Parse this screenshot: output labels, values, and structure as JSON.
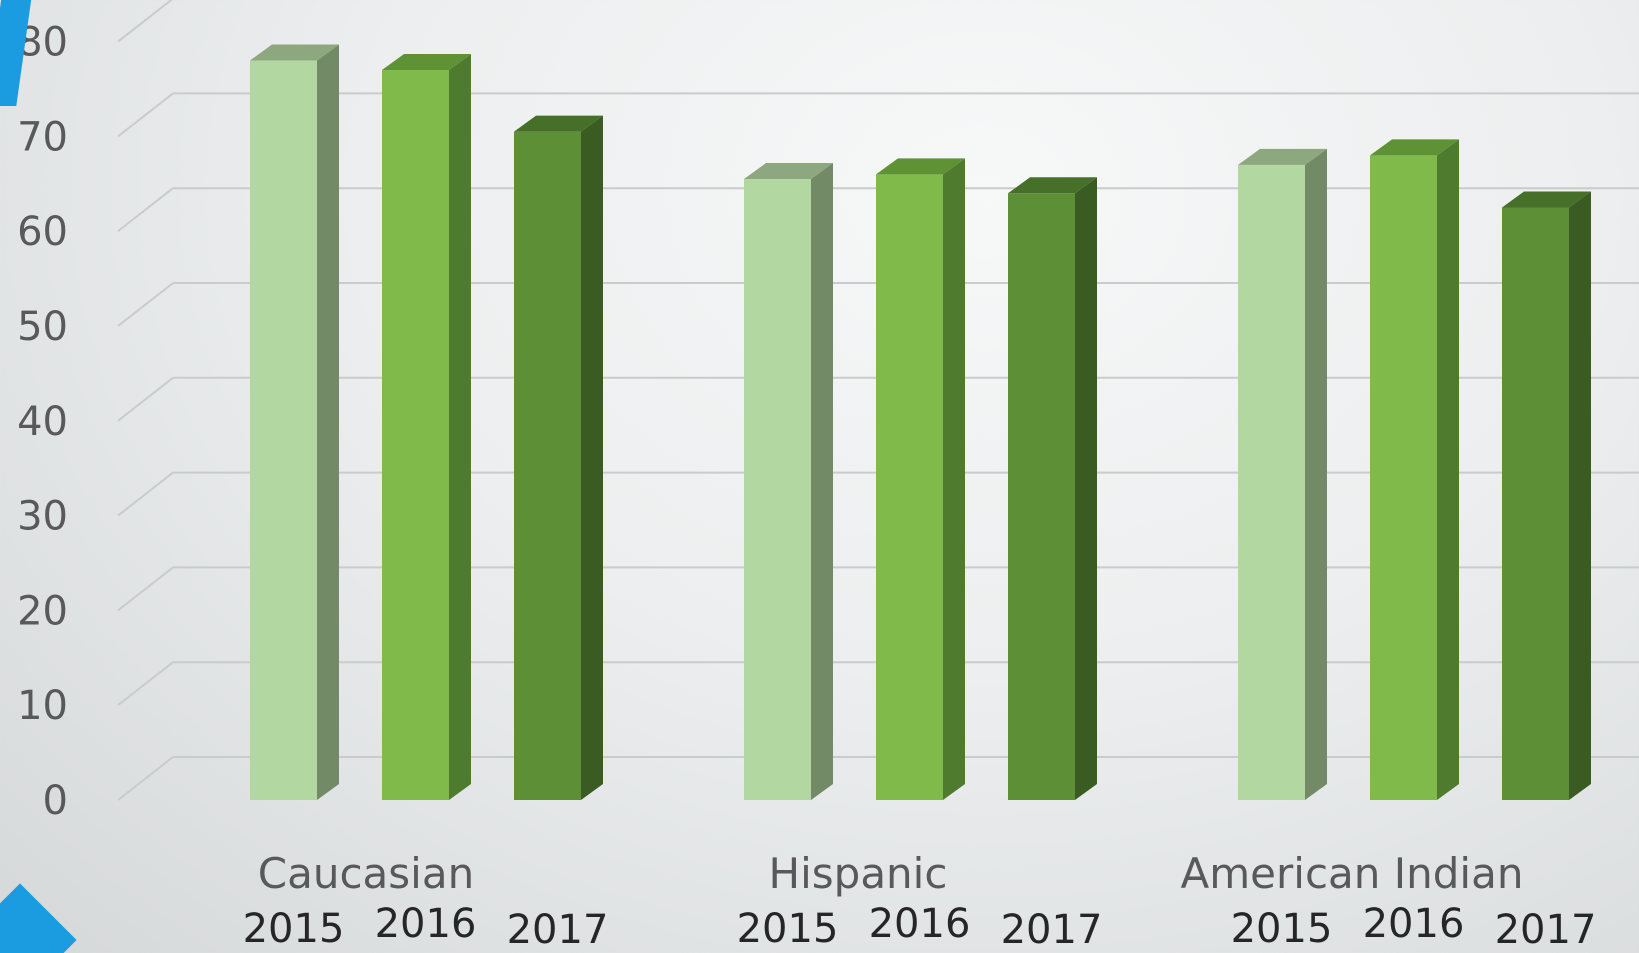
{
  "chart_data": {
    "type": "bar",
    "subtype": "3d-clustered-column",
    "title": "",
    "xlabel": "",
    "ylabel": "",
    "ylim": [
      0,
      80
    ],
    "yticks": [
      "0",
      "10",
      "20",
      "30",
      "40",
      "50",
      "60",
      "70",
      "80"
    ],
    "categories": [
      "Caucasian",
      "Hispanic",
      "American Indian"
    ],
    "series": [
      {
        "name": "2015",
        "values": [
          78,
          65.5,
          67
        ]
      },
      {
        "name": "2016",
        "values": [
          77,
          66,
          68
        ]
      },
      {
        "name": "2017",
        "values": [
          70.5,
          64,
          62.5
        ]
      }
    ],
    "grid": true,
    "legend": "none",
    "colors": {
      "2015": {
        "front": "#b3d7a0",
        "side": "#728a66",
        "top": "#8da87e"
      },
      "2016": {
        "front": "#7fba4a",
        "side": "#4e7b2e",
        "top": "#5f9235"
      },
      "2017": {
        "front": "#5d8f37",
        "side": "#3a5c22",
        "top": "#46702a"
      },
      "gridline": "#c9cbcc",
      "tick_text": "#595959",
      "category_text": "#595959",
      "year_text": "#262626",
      "accent": "#1b9be0"
    }
  }
}
